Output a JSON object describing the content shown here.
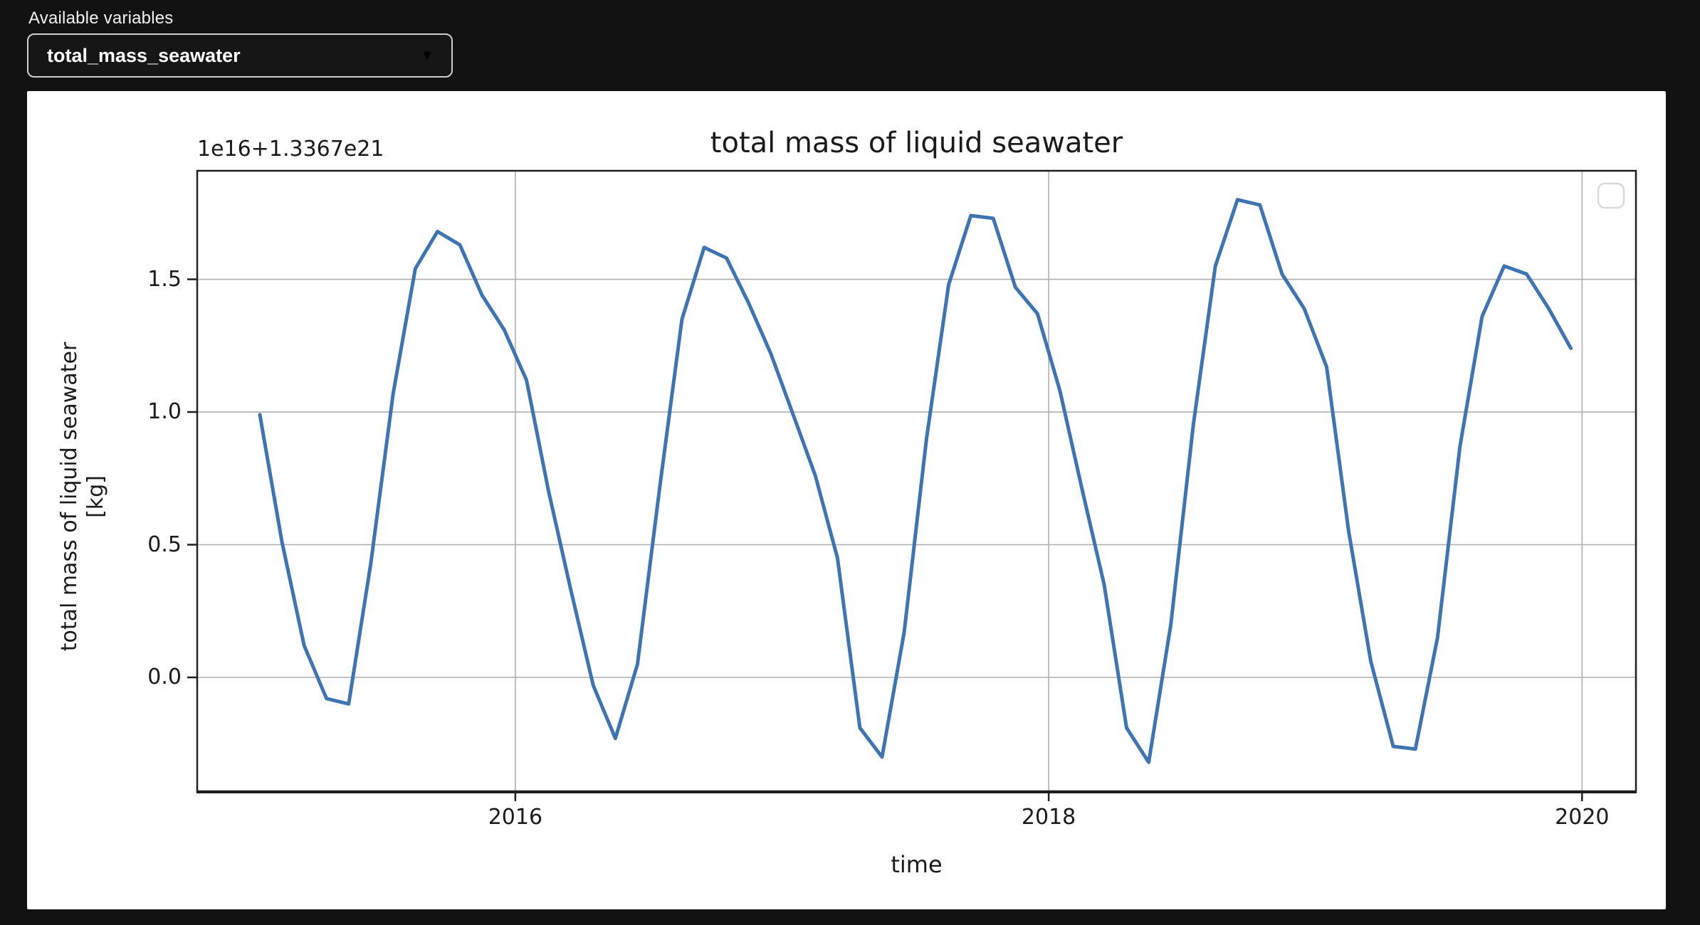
{
  "page": {
    "background": "#121212"
  },
  "variable_selector": {
    "label": "Available variables",
    "selected_value": "total_mass_seawater",
    "dropdown_arrow": "▼"
  },
  "chart_data": {
    "type": "line",
    "title": "total mass of liquid seawater",
    "offset_text": "1e16+1.3367e21",
    "xlabel": "time",
    "ylabel_line1": "total mass of liquid seawater",
    "ylabel_line2": "[kg]",
    "x_ticks": [
      2016,
      2018,
      2020
    ],
    "x_tick_labels": [
      "2016",
      "2018",
      "2020"
    ],
    "y_ticks": [
      0.0,
      0.5,
      1.0,
      1.5
    ],
    "y_tick_labels": [
      "0.0",
      "0.5",
      "1.0",
      "1.5"
    ],
    "xlim": [
      2014.807,
      2020.202
    ],
    "ylim": [
      -0.429,
      1.909
    ],
    "grid": true,
    "grid_color": "#b0b0b0",
    "spine_color": "#1f1f1f",
    "line_color": "#3d74b1",
    "legend": {
      "present": true,
      "entries": [],
      "position": "upper right"
    },
    "x": [
      2015.042,
      2015.125,
      2015.208,
      2015.292,
      2015.375,
      2015.458,
      2015.542,
      2015.625,
      2015.708,
      2015.792,
      2015.875,
      2015.958,
      2016.042,
      2016.125,
      2016.208,
      2016.292,
      2016.375,
      2016.458,
      2016.542,
      2016.625,
      2016.708,
      2016.792,
      2016.875,
      2016.958,
      2017.042,
      2017.125,
      2017.208,
      2017.292,
      2017.375,
      2017.458,
      2017.542,
      2017.625,
      2017.708,
      2017.792,
      2017.875,
      2017.958,
      2018.042,
      2018.125,
      2018.208,
      2018.292,
      2018.375,
      2018.458,
      2018.542,
      2018.625,
      2018.708,
      2018.792,
      2018.875,
      2018.958,
      2019.042,
      2019.125,
      2019.208,
      2019.292,
      2019.375,
      2019.458,
      2019.542,
      2019.625,
      2019.708,
      2019.792,
      2019.875,
      2019.958
    ],
    "y": [
      0.99,
      0.51,
      0.12,
      -0.08,
      -0.1,
      0.43,
      1.07,
      1.54,
      1.68,
      1.63,
      1.44,
      1.31,
      1.12,
      0.7,
      0.33,
      -0.03,
      -0.23,
      0.05,
      0.72,
      1.35,
      1.62,
      1.58,
      1.41,
      1.22,
      0.99,
      0.76,
      0.45,
      -0.19,
      -0.3,
      0.17,
      0.9,
      1.48,
      1.74,
      1.73,
      1.47,
      1.37,
      1.08,
      0.71,
      0.35,
      -0.19,
      -0.32,
      0.2,
      0.95,
      1.55,
      1.8,
      1.78,
      1.52,
      1.39,
      1.17,
      0.55,
      0.06,
      -0.26,
      -0.27,
      0.15,
      0.87,
      1.36,
      1.55,
      1.52,
      1.39,
      1.24
    ]
  }
}
